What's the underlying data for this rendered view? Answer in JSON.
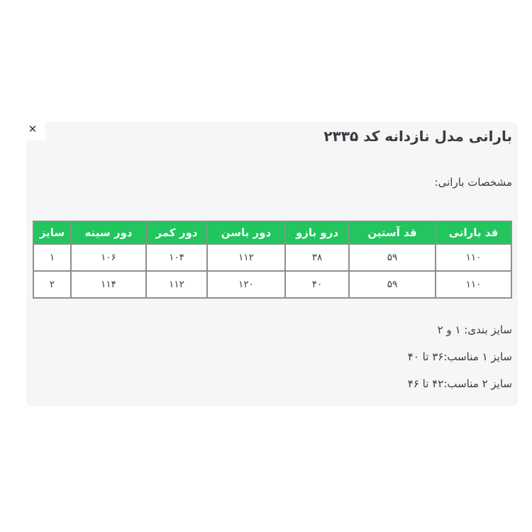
{
  "modal": {
    "title": "بارانی مدل نازدانه کد ۲۳۳۵",
    "close_label": "✕",
    "spec_heading": "مشخصات بارانی:"
  },
  "size_table": {
    "headers": [
      "قد بارانی",
      "قد آستین",
      "درو بازو",
      "دور باسن",
      "دور کمر",
      "دور سینه",
      "سایز"
    ],
    "rows": [
      [
        "۱۱۰",
        "۵۹",
        "۳۸",
        "۱۱۲",
        "۱۰۴",
        "۱۰۶",
        "۱"
      ],
      [
        "۱۱۰",
        "۵۹",
        "۴۰",
        "۱۲۰",
        "۱۱۲",
        "۱۱۴",
        "۲"
      ]
    ]
  },
  "notes": [
    "سایز بندی: ۱ و ۲",
    "سایز ۱ مناسب:۳۶ تا ۴۰",
    "سایز ۲ مناسب:۴۲ تا ۴۶"
  ],
  "colors": {
    "header_green": "#22c55e",
    "table_border": "#8e8e8e",
    "panel_background": "#f6f6f7",
    "text": "#3a3a42"
  }
}
